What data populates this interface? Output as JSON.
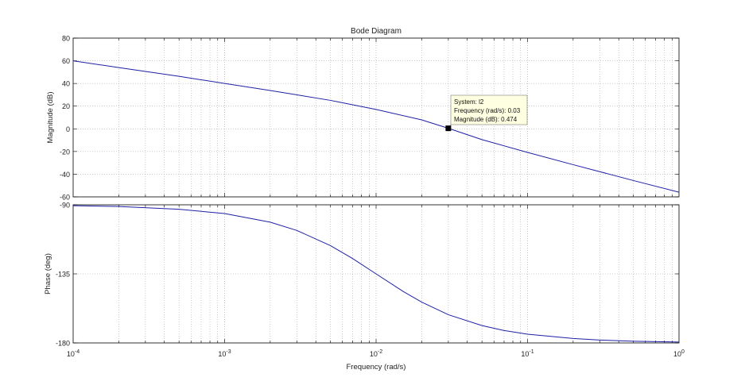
{
  "chart_data": {
    "type": "line",
    "title": "Bode Diagram",
    "xlabel": "Frequency  (rad/s)",
    "xscale": "log",
    "xlim": [
      0.0001,
      1
    ],
    "x_ticks": [
      {
        "value": 0.0001,
        "base": "10",
        "exp": "-4"
      },
      {
        "value": 0.001,
        "base": "10",
        "exp": "-3"
      },
      {
        "value": 0.01,
        "base": "10",
        "exp": "-2"
      },
      {
        "value": 0.1,
        "base": "10",
        "exp": "-1"
      },
      {
        "value": 1,
        "base": "10",
        "exp": "0"
      }
    ],
    "grid": true,
    "line_color": "#1f1fa6",
    "panels": [
      {
        "id": "magnitude",
        "ylabel": "Magnitude (dB)",
        "ylim": [
          -60,
          80
        ],
        "y_ticks": [
          "80",
          "60",
          "40",
          "20",
          "0",
          "-20",
          "-40",
          "-60"
        ],
        "y_tick_values": [
          80,
          60,
          40,
          20,
          0,
          -20,
          -40,
          -60
        ],
        "series": [
          {
            "x": [
              0.0001,
              0.0002,
              0.0005,
              0.001,
              0.002,
              0.005,
              0.01,
              0.02,
              0.03,
              0.05,
              0.1,
              0.2,
              0.5,
              1
            ],
            "y": [
              60,
              54,
              46.3,
              40,
              33.8,
              25.1,
              17.1,
              7.9,
              0.474,
              -9.5,
              -20.8,
              -31.6,
              -45.6,
              -55.9
            ]
          }
        ]
      },
      {
        "id": "phase",
        "ylabel": "Phase (deg)",
        "ylim": [
          -180,
          -90
        ],
        "y_ticks": [
          "-90",
          "-135",
          "-180"
        ],
        "y_tick_values": [
          -90,
          -135,
          -180
        ],
        "series": [
          {
            "x": [
              0.0001,
              0.0002,
              0.0005,
              0.001,
              0.002,
              0.003,
              0.005,
              0.007,
              0.01,
              0.015,
              0.02,
              0.03,
              0.05,
              0.07,
              0.1,
              0.2,
              0.3,
              0.5,
              1
            ],
            "y": [
              -90.6,
              -91.1,
              -92.9,
              -95.7,
              -101.3,
              -106.7,
              -116.6,
              -125,
              -135,
              -146.3,
              -153.4,
              -161.6,
              -168.7,
              -171.9,
              -174.3,
              -177.1,
              -178.1,
              -178.9,
              -179.4
            ]
          }
        ]
      }
    ],
    "datatip": {
      "panel": "magnitude",
      "x": 0.03,
      "y": 0.474,
      "lines": [
        "System: l2",
        "Frequency (rad/s): 0.03",
        "Magnitude (dB): 0.474"
      ]
    }
  }
}
